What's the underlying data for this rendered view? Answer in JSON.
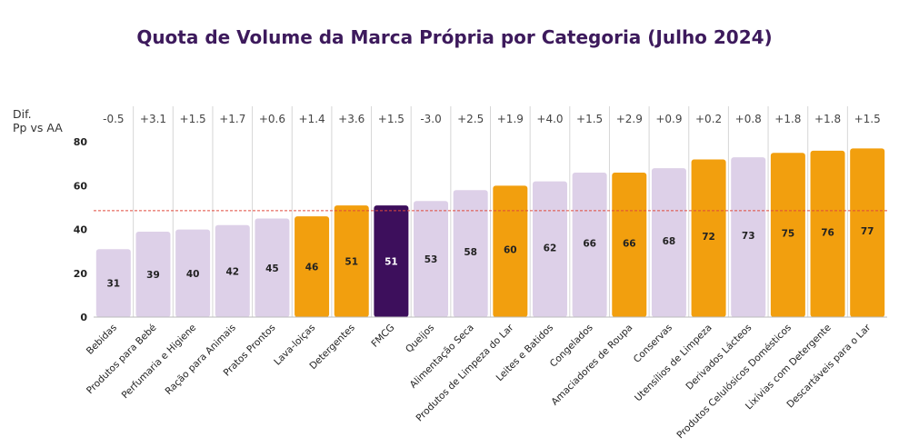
{
  "chart_data": {
    "type": "bar",
    "title": "Quota de Volume da Marca Própria por Categoria (Julho 2024)",
    "diff_header_line1": "Dif.",
    "diff_header_line2": "Pp vs AA",
    "categories": [
      "Bebidas",
      "Produtos para Bebé",
      "Perfumaria e Higiene",
      "Ração para Animais",
      "Pratos Prontos",
      "Lava-loiças",
      "Detergentes",
      "FMCG",
      "Queijos",
      "Alimentação Seca",
      "Produtos de Limpeza do Lar",
      "Leites e Batidos",
      "Congelados",
      "Amaciadores de Roupa",
      "Conservas",
      "Utensílios de Limpeza",
      "Derivados Lácteos",
      "Produtos Celulósicos Domésticos",
      "Lixívias com Detergente",
      "Descartáveis para o Lar"
    ],
    "values": [
      31,
      39,
      40,
      42,
      45,
      46,
      51,
      51,
      53,
      58,
      60,
      62,
      66,
      66,
      68,
      72,
      73,
      75,
      76,
      77
    ],
    "diffs": [
      "-0.5",
      "+3.1",
      "+1.5",
      "+1.7",
      "+0.6",
      "+1.4",
      "+3.6",
      "+1.5",
      "-3.0",
      "+2.5",
      "+1.9",
      "+4.0",
      "+1.5",
      "+2.9",
      "+0.9",
      "+0.2",
      "+0.8",
      "+1.8",
      "+1.8",
      "+1.5"
    ],
    "diff_colors": [
      "#d8433a",
      "#444444",
      "#444444",
      "#444444",
      "#444444",
      "#444444",
      "#444444",
      "#444444",
      "#444444",
      "#444444",
      "#444444",
      "#444444",
      "#444444",
      "#444444",
      "#444444",
      "#444444",
      "#444444",
      "#444444",
      "#444444",
      "#444444"
    ],
    "bar_colors": [
      "#ddd0e8",
      "#ddd0e8",
      "#ddd0e8",
      "#ddd0e8",
      "#ddd0e8",
      "#f29f0e",
      "#f29f0e",
      "#3d0f5c",
      "#ddd0e8",
      "#ddd0e8",
      "#f29f0e",
      "#ddd0e8",
      "#ddd0e8",
      "#f29f0e",
      "#ddd0e8",
      "#f29f0e",
      "#ddd0e8",
      "#f29f0e",
      "#f29f0e",
      "#f29f0e"
    ],
    "yticks": [
      0,
      20,
      40,
      60,
      80
    ],
    "ylim": [
      0,
      80
    ],
    "reference_line": 48.6,
    "reference_color": "#e04a3c",
    "grid": false,
    "legend": "none"
  }
}
